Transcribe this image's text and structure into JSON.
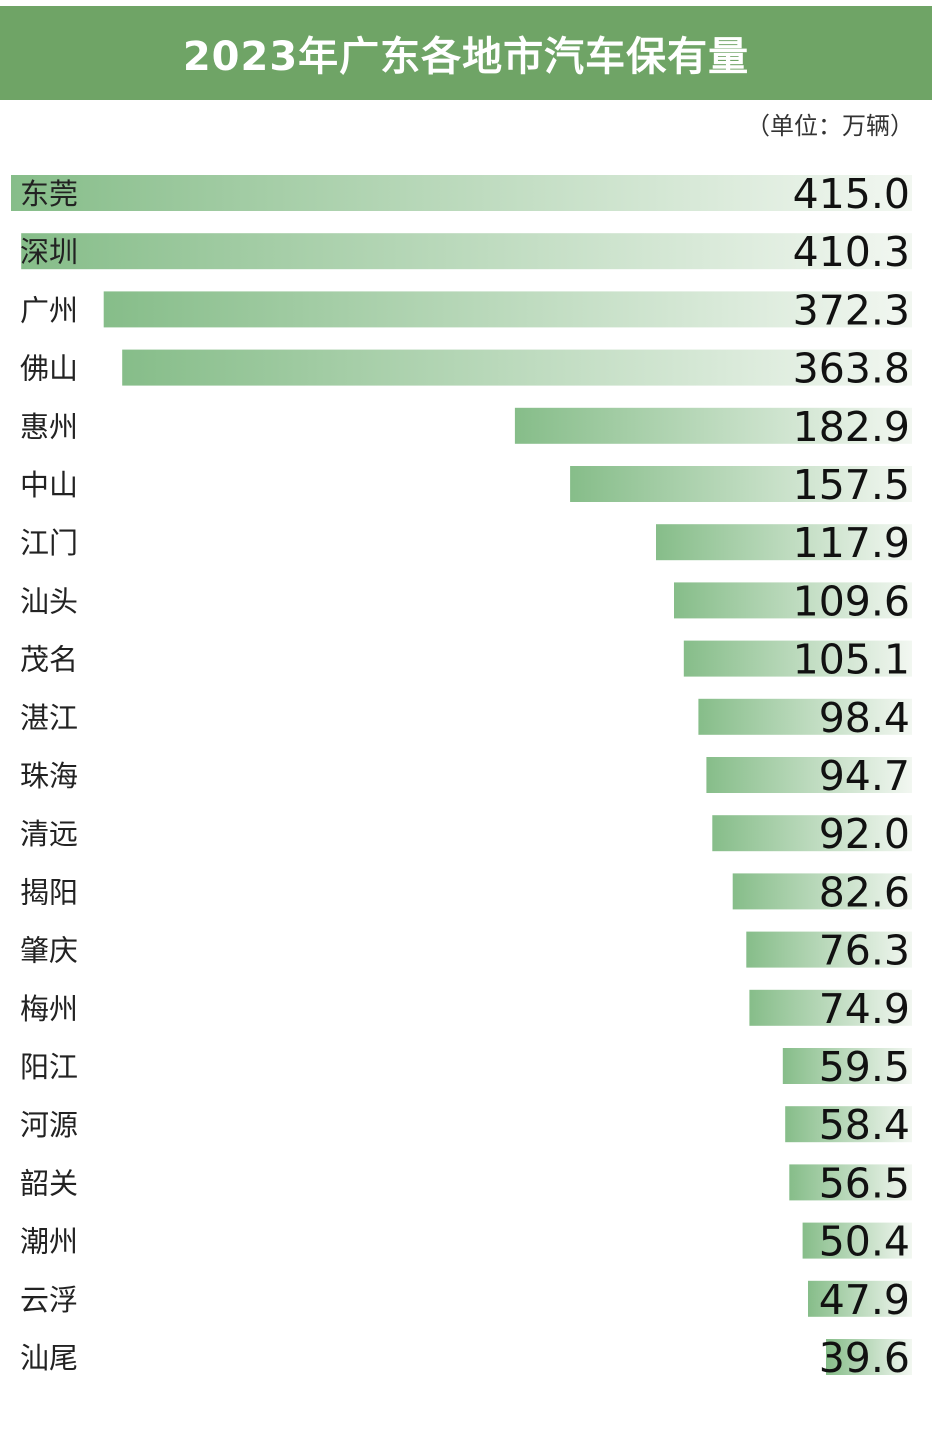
{
  "chart_data": {
    "type": "bar",
    "orientation": "horizontal",
    "title": "2023年广东各地市汽车保有量",
    "unit": "（单位：万辆）",
    "categories": [
      "东莞",
      "深圳",
      "广州",
      "佛山",
      "惠州",
      "中山",
      "江门",
      "汕头",
      "茂名",
      "湛江",
      "珠海",
      "清远",
      "揭阳",
      "肇庆",
      "梅州",
      "阳江",
      "河源",
      "韶关",
      "潮州",
      "云浮",
      "汕尾"
    ],
    "values": [
      415.0,
      410.3,
      372.3,
      363.8,
      182.9,
      157.5,
      117.9,
      109.6,
      105.1,
      98.4,
      94.7,
      92.0,
      82.6,
      76.3,
      74.9,
      59.5,
      58.4,
      56.5,
      50.4,
      47.9,
      39.6
    ],
    "value_labels": [
      "415.0",
      "410.3",
      "372.3",
      "363.8",
      "182.9",
      "157.5",
      "117.9",
      "109.6",
      "105.1",
      "98.4",
      "94.7",
      "92.0",
      "82.6",
      "76.3",
      "74.9",
      "59.5",
      "58.4",
      "56.5",
      "50.4",
      "47.9",
      "39.6"
    ],
    "xlim": [
      0,
      415.0
    ],
    "bar_direction": "right-aligned",
    "grid": false,
    "legend": "none",
    "colors": {
      "header": "#6fa466",
      "bar_dark": "#86bd89",
      "bar_light": "#f2f7f1"
    }
  }
}
